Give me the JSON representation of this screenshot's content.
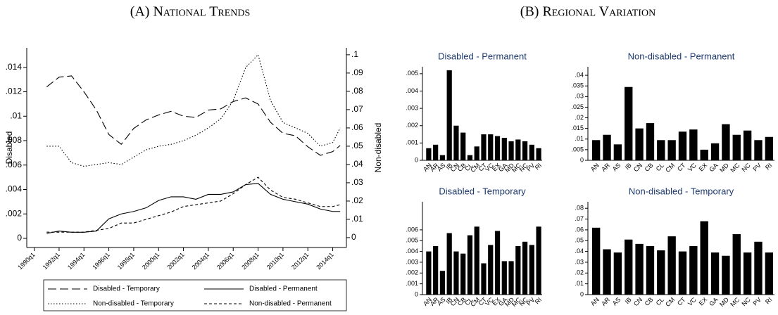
{
  "panel_titles": [
    "(A) National Trends",
    "(B) Regional Variation"
  ],
  "chart_data": [
    {
      "type": "line",
      "y_label": "Disabled",
      "y2_label": "Non-disabled",
      "x": [
        1991,
        1992,
        1993,
        1994,
        1995,
        1996,
        1997,
        1998,
        1999,
        2000,
        2001,
        2002,
        2003,
        2004,
        2005,
        2006,
        2007,
        2008,
        2009,
        2010,
        2011,
        2012,
        2013,
        2014,
        2014.6
      ],
      "xlim": [
        1989.4,
        2015.1
      ],
      "xticks": [
        {
          "value": 1990,
          "label": "1990q1"
        },
        {
          "value": 1992,
          "label": "1992q1"
        },
        {
          "value": 1994,
          "label": "1994q1"
        },
        {
          "value": 1996,
          "label": "1996q1"
        },
        {
          "value": 1998,
          "label": "1998q1"
        },
        {
          "value": 2000,
          "label": "2000q1"
        },
        {
          "value": 2002,
          "label": "2002q1"
        },
        {
          "value": 2004,
          "label": "2004q1"
        },
        {
          "value": 2006,
          "label": "2006q1"
        },
        {
          "value": 2008,
          "label": "2008q1"
        },
        {
          "value": 2010,
          "label": "2010q1"
        },
        {
          "value": 2012,
          "label": "2012q1"
        },
        {
          "value": 2014,
          "label": "2014q1"
        }
      ],
      "ylim": [
        -0.00075,
        0.0156
      ],
      "yticks": [
        0,
        {
          "value": 0.002,
          "label": ".002"
        },
        {
          "value": 0.004,
          "label": ".004"
        },
        {
          "value": 0.006,
          "label": ".006"
        },
        {
          "value": 0.008,
          "label": ".008"
        },
        {
          "value": 0.01,
          "label": ".01"
        },
        {
          "value": 0.012,
          "label": ".012"
        },
        {
          "value": 0.014,
          "label": ".014"
        }
      ],
      "y2lim": [
        -0.0054,
        0.1038
      ],
      "y2ticks": [
        0,
        {
          "value": 0.01,
          "label": ".01"
        },
        {
          "value": 0.02,
          "label": ".02"
        },
        {
          "value": 0.03,
          "label": ".03"
        },
        {
          "value": 0.04,
          "label": ".04"
        },
        {
          "value": 0.05,
          "label": ".05"
        },
        {
          "value": 0.06,
          "label": ".06"
        },
        {
          "value": 0.07,
          "label": ".07"
        },
        {
          "value": 0.08,
          "label": ".08"
        },
        {
          "value": 0.09,
          "label": ".09"
        },
        {
          "value": 0.1,
          "label": ".1"
        }
      ],
      "series": [
        {
          "name": "Disabled - Temporary",
          "color": "#000000",
          "dash": "long-dash",
          "axis": "y",
          "values": [
            0.0124,
            0.0132,
            0.0133,
            0.012,
            0.0105,
            0.0085,
            0.0077,
            0.009,
            0.0097,
            0.0101,
            0.0104,
            0.01,
            0.0099,
            0.0105,
            0.0106,
            0.0112,
            0.0115,
            0.011,
            0.0095,
            0.0086,
            0.0084,
            0.0075,
            0.0068,
            0.0071,
            0.0076
          ]
        },
        {
          "name": "Disabled - Permanent",
          "color": "#000000",
          "dash": "solid",
          "axis": "y",
          "values": [
            0.0004,
            0.0006,
            0.0005,
            0.0005,
            0.0006,
            0.0016,
            0.002,
            0.0022,
            0.0025,
            0.0031,
            0.0034,
            0.0034,
            0.0032,
            0.0036,
            0.0036,
            0.0038,
            0.0044,
            0.0045,
            0.0036,
            0.0032,
            0.003,
            0.0028,
            0.0024,
            0.0022,
            0.0022
          ]
        },
        {
          "name": "Non-disabled - Temporary",
          "color": "#000000",
          "dash": "dotted",
          "axis": "y2",
          "values": [
            0.05,
            0.05,
            0.041,
            0.039,
            0.04,
            0.041,
            0.04,
            0.044,
            0.048,
            0.05,
            0.051,
            0.053,
            0.056,
            0.06,
            0.065,
            0.075,
            0.093,
            0.1,
            0.075,
            0.063,
            0.06,
            0.057,
            0.05,
            0.052,
            0.06
          ]
        },
        {
          "name": "Non-disabled - Permanent",
          "color": "#000000",
          "dash": "dashed",
          "axis": "y2",
          "values": [
            0.003,
            0.003,
            0.003,
            0.003,
            0.004,
            0.005,
            0.008,
            0.008,
            0.01,
            0.012,
            0.014,
            0.017,
            0.018,
            0.019,
            0.02,
            0.024,
            0.029,
            0.033,
            0.026,
            0.022,
            0.021,
            0.019,
            0.017,
            0.017,
            0.018
          ]
        }
      ]
    },
    {
      "type": "bar",
      "title": "Disabled - Permanent",
      "color": "#000000",
      "categories": [
        "AN",
        "AR",
        "AS",
        "IB",
        "CN",
        "CB",
        "CL",
        "CM",
        "CT",
        "VC",
        "EX",
        "GA",
        "MD",
        "MC",
        "NC",
        "PV",
        "RI"
      ],
      "values": [
        0.0007,
        0.0009,
        0.0003,
        0.0052,
        0.002,
        0.0016,
        0.0003,
        0.0008,
        0.0015,
        0.0015,
        0.0014,
        0.0013,
        0.0011,
        0.0012,
        0.0011,
        0.0009,
        0.0007
      ],
      "ylim": [
        0,
        0.0054
      ],
      "yticks": [
        0,
        {
          "value": 0.001,
          "label": ".001"
        },
        {
          "value": 0.002,
          "label": ".002"
        },
        {
          "value": 0.003,
          "label": ".003"
        },
        {
          "value": 0.004,
          "label": ".004"
        },
        {
          "value": 0.005,
          "label": ".005"
        }
      ]
    },
    {
      "type": "bar",
      "title": "Non-disabled - Permanent",
      "color": "#000000",
      "categories": [
        "AN",
        "AR",
        "AS",
        "IB",
        "CN",
        "CB",
        "CL",
        "CM",
        "CT",
        "VC",
        "EX",
        "GA",
        "MD",
        "MC",
        "NC",
        "PV",
        "RI"
      ],
      "values": [
        0.0095,
        0.012,
        0.0075,
        0.0345,
        0.015,
        0.0175,
        0.0095,
        0.0095,
        0.0135,
        0.0145,
        0.005,
        0.008,
        0.017,
        0.012,
        0.014,
        0.0095,
        0.011
      ],
      "ylim": [
        0,
        0.044
      ],
      "yticks": [
        0,
        {
          "value": 0.005,
          "label": ".005"
        },
        {
          "value": 0.01,
          "label": ".01"
        },
        {
          "value": 0.015,
          "label": ".015"
        },
        {
          "value": 0.02,
          "label": ".02"
        },
        {
          "value": 0.025,
          "label": ".025"
        },
        {
          "value": 0.03,
          "label": ".03"
        },
        {
          "value": 0.035,
          "label": ".035"
        },
        {
          "value": 0.04,
          "label": ".04"
        }
      ]
    },
    {
      "type": "bar",
      "title": "Disabled - Temporary",
      "color": "#000000",
      "categories": [
        "AN",
        "AR",
        "AS",
        "IB",
        "CN",
        "CB",
        "CL",
        "CM",
        "CT",
        "VC",
        "EX",
        "GA",
        "MD",
        "MC",
        "NC",
        "PV",
        "RI"
      ],
      "values": [
        0.004,
        0.0045,
        0.0022,
        0.0057,
        0.004,
        0.0038,
        0.0055,
        0.0063,
        0.0029,
        0.0046,
        0.0059,
        0.0031,
        0.0031,
        0.0045,
        0.0049,
        0.0046,
        0.0063
      ],
      "ylim": [
        0,
        0.0086
      ],
      "yticks": [
        0,
        {
          "value": 0.001,
          "label": ".001"
        },
        {
          "value": 0.002,
          "label": ".002"
        },
        {
          "value": 0.003,
          "label": ".003"
        },
        {
          "value": 0.004,
          "label": ".004"
        },
        {
          "value": 0.005,
          "label": ".005"
        },
        {
          "value": 0.006,
          "label": ".006"
        }
      ]
    },
    {
      "type": "bar",
      "title": "Non-disabled - Temporary",
      "color": "#000000",
      "categories": [
        "AN",
        "AR",
        "AS",
        "IB",
        "CN",
        "CB",
        "CL",
        "CM",
        "CT",
        "VC",
        "EX",
        "GA",
        "MD",
        "MC",
        "NC",
        "PV",
        "RI"
      ],
      "values": [
        0.062,
        0.042,
        0.039,
        0.051,
        0.047,
        0.045,
        0.041,
        0.054,
        0.04,
        0.045,
        0.068,
        0.039,
        0.036,
        0.056,
        0.039,
        0.049,
        0.039
      ],
      "ylim": [
        0,
        0.086
      ],
      "yticks": [
        0,
        {
          "value": 0.01,
          "label": ".01"
        },
        {
          "value": 0.02,
          "label": ".02"
        },
        {
          "value": 0.03,
          "label": ".03"
        },
        {
          "value": 0.04,
          "label": ".04"
        },
        {
          "value": 0.05,
          "label": ".05"
        },
        {
          "value": 0.06,
          "label": ".06"
        },
        {
          "value": 0.07,
          "label": ".07"
        },
        {
          "value": 0.08,
          "label": ".08"
        }
      ]
    }
  ]
}
